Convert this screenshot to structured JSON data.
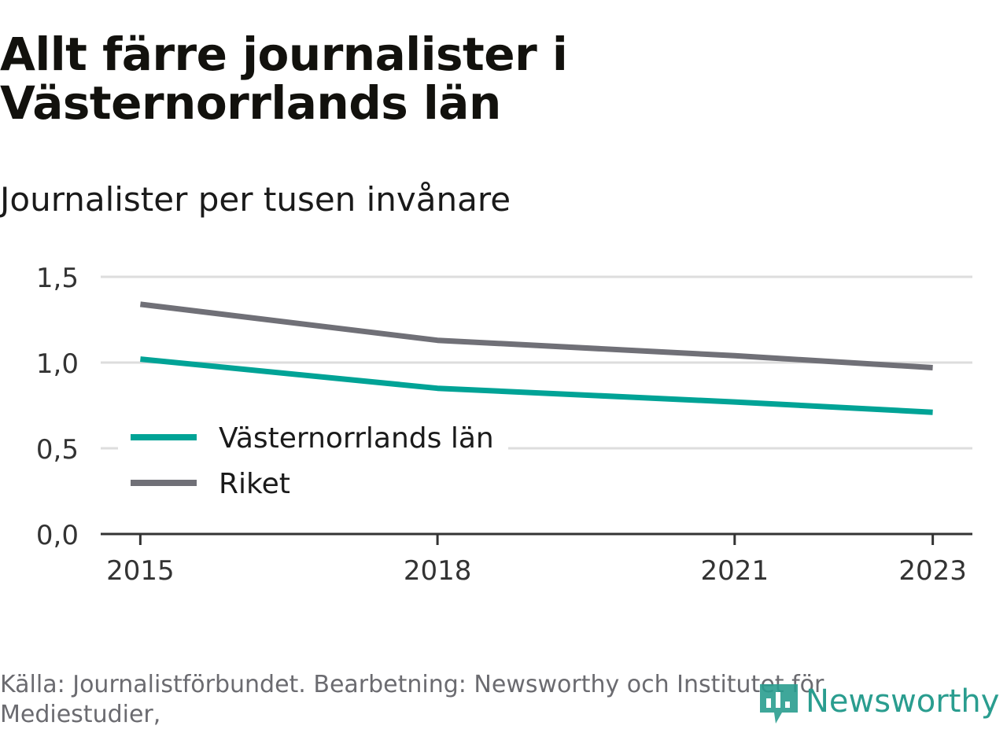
{
  "header": {
    "title": "Allt färre journalister i Västernorrlands län",
    "subtitle": "Journalister per tusen invånare"
  },
  "footer": {
    "source": "Källa: Journalistförbundet. Bearbetning: Newsworthy och Institutet för Mediestudier,",
    "brand": "Newsworthy"
  },
  "colors": {
    "vasternorrland": "#00a396",
    "riket": "#707077",
    "gridline": "#dddddd",
    "axis": "#333333",
    "brand": "#2a9d8f"
  },
  "chart_data": {
    "type": "line",
    "title": "Allt färre journalister i Västernorrlands län",
    "subtitle": "Journalister per tusen invånare",
    "xlabel": "",
    "ylabel": "",
    "x_ticks": [
      2015,
      2018,
      2021,
      2023
    ],
    "x_tick_labels": [
      "2015",
      "2018",
      "2021",
      "2023"
    ],
    "y_ticks": [
      0,
      0.5,
      1.0,
      1.5
    ],
    "y_tick_labels": [
      "0,0",
      "0,5",
      "1,0",
      "1,5"
    ],
    "xlim": [
      2014.6,
      2023.4
    ],
    "ylim": [
      0,
      1.5
    ],
    "grid": true,
    "legend_position": "bottom-left",
    "series": [
      {
        "name": "Västernorrlands län",
        "color": "#00a396",
        "x": [
          2015,
          2018,
          2021,
          2023
        ],
        "values": [
          1.02,
          0.85,
          0.77,
          0.71
        ]
      },
      {
        "name": "Riket",
        "color": "#707077",
        "x": [
          2015,
          2018,
          2021,
          2023
        ],
        "values": [
          1.34,
          1.13,
          1.04,
          0.97
        ]
      }
    ]
  }
}
